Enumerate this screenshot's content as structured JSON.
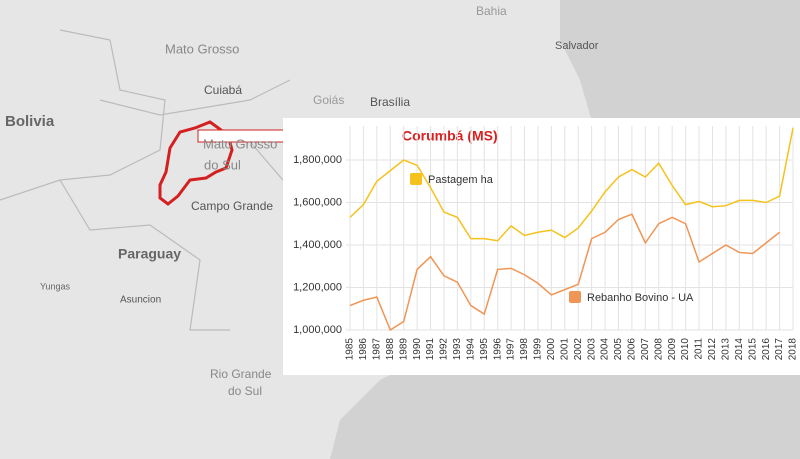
{
  "map": {
    "labels": [
      "Bahia",
      "Salvador",
      "Mato Grosso",
      "Cuiabá",
      "Goiás",
      "Brasília",
      "Bolivia",
      "Mato Grosso",
      "do Sul",
      "Campo Grande",
      "Paraguay",
      "Yungas",
      "Asuncion",
      "Rio Grande",
      "do Sul"
    ]
  },
  "chart_data": {
    "type": "line",
    "title": "Corumbá (MS)",
    "categories": [
      "1985",
      "1986",
      "1987",
      "1988",
      "1989",
      "1990",
      "1991",
      "1992",
      "1993",
      "1994",
      "1995",
      "1996",
      "1997",
      "1998",
      "1999",
      "2000",
      "2001",
      "2002",
      "2003",
      "2004",
      "2005",
      "2006",
      "2007",
      "2008",
      "2009",
      "2010",
      "2011",
      "2012",
      "2013",
      "2014",
      "2015",
      "2016",
      "2017",
      "2018"
    ],
    "series": [
      {
        "name": "Pastagem ha",
        "color": "#f5c21b",
        "values": [
          1530000,
          1590000,
          1700000,
          1750000,
          1800000,
          1775000,
          1670000,
          1555000,
          1530000,
          1430000,
          1430000,
          1420000,
          1490000,
          1445000,
          1460000,
          1470000,
          1435000,
          1480000,
          1560000,
          1650000,
          1720000,
          1755000,
          1720000,
          1785000,
          1680000,
          1590000,
          1605000,
          1580000,
          1585000,
          1610000,
          1610000,
          1600000,
          1630000,
          1950000
        ]
      },
      {
        "name": "Rebanho Bovino - UA",
        "color": "#ef9555",
        "values": [
          1115000,
          1140000,
          1155000,
          1000000,
          1040000,
          1285000,
          1345000,
          1255000,
          1225000,
          1115000,
          1075000,
          1285000,
          1290000,
          1260000,
          1220000,
          1165000,
          1190000,
          1215000,
          1430000,
          1460000,
          1520000,
          1545000,
          1410000,
          1500000,
          1530000,
          1500000,
          1320000,
          1360000,
          1400000,
          1365000,
          1360000,
          1410000,
          1460000,
          null
        ]
      }
    ],
    "ylim": [
      1000000,
      1960000
    ],
    "yticks": [
      {
        "value": 1000000,
        "label": "1,000,000"
      },
      {
        "value": 1200000,
        "label": "1,200,000"
      },
      {
        "value": 1400000,
        "label": "1,400,000"
      },
      {
        "value": 1600000,
        "label": "1,600,000"
      },
      {
        "value": 1800000,
        "label": "1,800,000"
      }
    ],
    "grid": true
  }
}
